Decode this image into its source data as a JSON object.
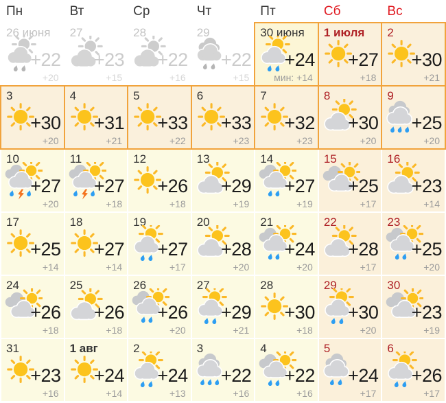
{
  "colors": {
    "accent_border": "#f1a33c",
    "header_weekend_red": "#e01b22",
    "day_weekend_red": "#ae2025",
    "today_background": "#fcf6d6",
    "highlight_background": "#faf0dc",
    "weekday_cell_background": "#fcfae2",
    "weekend_cell_background": "#fbf0da",
    "sun_yellow": "#fcc31d",
    "cloud_gray": "#d4d5d8",
    "rain_blue": "#2d9ef2",
    "lightning_orange": "#f4731f"
  },
  "weekdays": [
    {
      "label": "Пн",
      "weekend": false
    },
    {
      "label": "Вт",
      "weekend": false
    },
    {
      "label": "Ср",
      "weekend": false
    },
    {
      "label": "Чт",
      "weekend": false
    },
    {
      "label": "Пт",
      "weekend": false
    },
    {
      "label": "Сб",
      "weekend": true
    },
    {
      "label": "Вс",
      "weekend": true
    }
  ],
  "days": [
    {
      "label": "26 июня",
      "icon": "rain-sun",
      "max": "+22",
      "min": "+20",
      "past": true
    },
    {
      "label": "27",
      "icon": "partly",
      "max": "+23",
      "min": "+15",
      "past": true
    },
    {
      "label": "28",
      "icon": "partly",
      "max": "+22",
      "min": "+16",
      "past": true
    },
    {
      "label": "29",
      "icon": "rain2",
      "max": "+22",
      "min": "+15",
      "past": true
    },
    {
      "label": "30 июня",
      "icon": "rain-sun",
      "max": "+24",
      "min": "мин: +14",
      "today": true,
      "hl": true
    },
    {
      "label": "1 июля",
      "icon": "sunny",
      "max": "+27",
      "min": "+18",
      "weekend": true,
      "hl": true,
      "bold": true
    },
    {
      "label": "2",
      "icon": "sunny",
      "max": "+30",
      "min": "+21",
      "weekend": true,
      "hl": true
    },
    {
      "label": "3",
      "icon": "sunny",
      "max": "+30",
      "min": "+20",
      "hl": true
    },
    {
      "label": "4",
      "icon": "sunny",
      "max": "+31",
      "min": "+21",
      "hl": true
    },
    {
      "label": "5",
      "icon": "sunny",
      "max": "+33",
      "min": "+22",
      "hl": true
    },
    {
      "label": "6",
      "icon": "sunny",
      "max": "+33",
      "min": "+23",
      "hl": true
    },
    {
      "label": "7",
      "icon": "sunny",
      "max": "+32",
      "min": "+23",
      "hl": true
    },
    {
      "label": "8",
      "icon": "partly",
      "max": "+30",
      "min": "+20",
      "weekend": true,
      "hl": true
    },
    {
      "label": "9",
      "icon": "rain3",
      "max": "+25",
      "min": "+20",
      "weekend": true,
      "hl": true
    },
    {
      "label": "10",
      "icon": "storm",
      "max": "+27",
      "min": "+20"
    },
    {
      "label": "11",
      "icon": "storm",
      "max": "+27",
      "min": "+18"
    },
    {
      "label": "12",
      "icon": "sunny",
      "max": "+26",
      "min": "+18"
    },
    {
      "label": "13",
      "icon": "partly",
      "max": "+29",
      "min": "+19"
    },
    {
      "label": "14",
      "icon": "cloudy-rain-sun",
      "max": "+27",
      "min": "+19"
    },
    {
      "label": "15",
      "icon": "cloudy",
      "max": "+25",
      "min": "+17",
      "weekend": true
    },
    {
      "label": "16",
      "icon": "partly",
      "max": "+23",
      "min": "+14",
      "weekend": true
    },
    {
      "label": "17",
      "icon": "sunny",
      "max": "+25",
      "min": "+14"
    },
    {
      "label": "18",
      "icon": "sunny",
      "max": "+27",
      "min": "+14"
    },
    {
      "label": "19",
      "icon": "rain-sun",
      "max": "+27",
      "min": "+17"
    },
    {
      "label": "20",
      "icon": "partly",
      "max": "+28",
      "min": "+20"
    },
    {
      "label": "21",
      "icon": "cloudy-rain-sun",
      "max": "+24",
      "min": "+20"
    },
    {
      "label": "22",
      "icon": "partly",
      "max": "+28",
      "min": "+17",
      "weekend": true
    },
    {
      "label": "23",
      "icon": "cloudy-rain-sun",
      "max": "+25",
      "min": "+20",
      "weekend": true
    },
    {
      "label": "24",
      "icon": "cloudy",
      "max": "+26",
      "min": "+18"
    },
    {
      "label": "25",
      "icon": "partly",
      "max": "+26",
      "min": "+18"
    },
    {
      "label": "26",
      "icon": "cloudy-rain-sun",
      "max": "+26",
      "min": "+20"
    },
    {
      "label": "27",
      "icon": "rain-sun",
      "max": "+29",
      "min": "+21"
    },
    {
      "label": "28",
      "icon": "sunny",
      "max": "+30",
      "min": "+18"
    },
    {
      "label": "29",
      "icon": "rain-sun",
      "max": "+30",
      "min": "+20",
      "weekend": true
    },
    {
      "label": "30",
      "icon": "cloudy",
      "max": "+23",
      "min": "+19",
      "weekend": true
    },
    {
      "label": "31",
      "icon": "sunny",
      "max": "+23",
      "min": "+16"
    },
    {
      "label": "1 авг",
      "icon": "sunny",
      "max": "+24",
      "min": "+14",
      "bold": true
    },
    {
      "label": "2",
      "icon": "rain-sun",
      "max": "+24",
      "min": "+13"
    },
    {
      "label": "3",
      "icon": "rain3",
      "max": "+22",
      "min": "+16"
    },
    {
      "label": "4",
      "icon": "cloudy-rain-sun",
      "max": "+22",
      "min": "+16"
    },
    {
      "label": "5",
      "icon": "rain2",
      "max": "+24",
      "min": "+17",
      "weekend": true
    },
    {
      "label": "6",
      "icon": "rain-sun",
      "max": "+26",
      "min": "+17",
      "weekend": true
    }
  ]
}
